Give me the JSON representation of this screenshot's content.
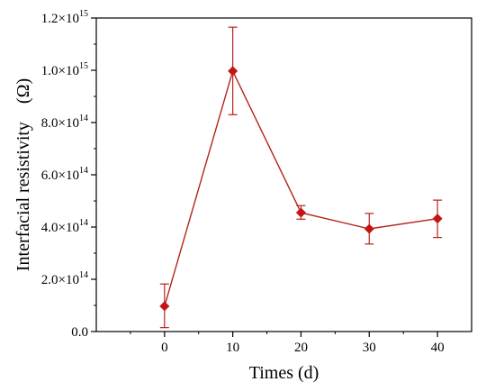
{
  "chart_data": {
    "type": "line",
    "title": "",
    "xlabel": "Times (d)",
    "ylabel": "Interfacial resistivity　(Ω)",
    "xlim": [
      -10,
      45
    ],
    "ylim": [
      0,
      1200000000000000.0
    ],
    "x_ticks": [
      0,
      10,
      20,
      30,
      40
    ],
    "x_tick_labels": [
      "0",
      "10",
      "20",
      "30",
      "40"
    ],
    "y_ticks": [
      0,
      200000000000000.0,
      400000000000000.0,
      600000000000000.0,
      800000000000000.0,
      1000000000000000.0,
      1200000000000000.0
    ],
    "y_tick_labels": [
      {
        "base": "0.0",
        "exp": ""
      },
      {
        "base": "2.0×10",
        "exp": "14"
      },
      {
        "base": "4.0×10",
        "exp": "14"
      },
      {
        "base": "6.0×10",
        "exp": "14"
      },
      {
        "base": "8.0×10",
        "exp": "14"
      },
      {
        "base": "1.0×10",
        "exp": "15"
      },
      {
        "base": "1.2×10",
        "exp": "15"
      }
    ],
    "grid": false,
    "legend": "none",
    "series": [
      {
        "color": "#b5231c",
        "marker": "diamond",
        "marker_color": "#cc1111",
        "x": [
          0,
          10,
          20,
          30,
          40
        ],
        "y": [
          97000000000000.0,
          997000000000000.0,
          455000000000000.0,
          393000000000000.0,
          432000000000000.0
        ],
        "error_low": [
          15000000000000.0,
          830000000000000.0,
          430000000000000.0,
          335000000000000.0,
          360000000000000.0
        ],
        "error_high": [
          182000000000000.0,
          1165000000000000.0,
          482000000000000.0,
          452000000000000.0,
          503000000000000.0
        ]
      }
    ]
  }
}
